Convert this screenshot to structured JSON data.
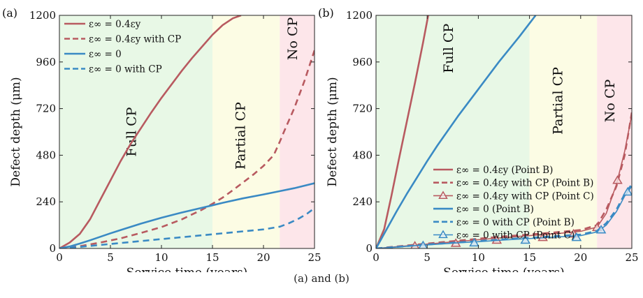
{
  "caption": "(a) and (b)",
  "chart_data": [
    {
      "panel_label": "(a)",
      "type": "line",
      "xlabel": "Service time (years)",
      "ylabel": "Defect depth (μm)",
      "xlim": [
        0,
        25
      ],
      "ylim": [
        0,
        1200
      ],
      "xticks": [
        0,
        5,
        10,
        15,
        20,
        25
      ],
      "yticks": [
        0,
        240,
        480,
        720,
        960,
        1200
      ],
      "regions": [
        {
          "label": "Full CP",
          "x0": 0,
          "x1": 15,
          "color": "#e8f8e6"
        },
        {
          "label": "Partial CP",
          "x0": 15,
          "x1": 21.6,
          "color": "#fcfce4"
        },
        {
          "label": "No CP",
          "x0": 21.6,
          "x1": 25,
          "color": "#fde6ea"
        }
      ],
      "legend_position": "top-left",
      "series": [
        {
          "name": "ε∞ = 0.4εy",
          "color": "#b85a60",
          "dash": "solid",
          "x": [
            0,
            1,
            2,
            3,
            4,
            5,
            6,
            7,
            8,
            9,
            10,
            11,
            12,
            13,
            14,
            15,
            16,
            17,
            17.8
          ],
          "y": [
            0,
            30,
            75,
            150,
            250,
            350,
            450,
            540,
            620,
            700,
            775,
            845,
            915,
            980,
            1040,
            1100,
            1150,
            1185,
            1200
          ]
        },
        {
          "name": "ε∞ = 0.4εy with CP",
          "color": "#b85a60",
          "dash": "dashed",
          "x": [
            0,
            2,
            4,
            6,
            8,
            10,
            12,
            14,
            15,
            16,
            17,
            18,
            19,
            20,
            21,
            21.6,
            22,
            23,
            24,
            25
          ],
          "y": [
            0,
            12,
            30,
            52,
            80,
            110,
            150,
            200,
            230,
            262,
            300,
            340,
            380,
            425,
            480,
            550,
            600,
            720,
            860,
            1020
          ]
        },
        {
          "name": "ε∞ = 0",
          "color": "#3a8ac4",
          "dash": "solid",
          "x": [
            0,
            1,
            2,
            3,
            4,
            5,
            6,
            8,
            10,
            12,
            14,
            15,
            16,
            18,
            20,
            21.6,
            23,
            25
          ],
          "y": [
            0,
            10,
            25,
            42,
            60,
            78,
            95,
            128,
            158,
            185,
            210,
            222,
            235,
            258,
            278,
            295,
            310,
            336
          ]
        },
        {
          "name": "ε∞ = 0 with CP",
          "color": "#3a8ac4",
          "dash": "dashed",
          "x": [
            0,
            2,
            4,
            6,
            8,
            10,
            12,
            14,
            16,
            18,
            20,
            21.6,
            22.5,
            23.5,
            24.3,
            25
          ],
          "y": [
            0,
            8,
            18,
            28,
            38,
            48,
            58,
            68,
            78,
            88,
            98,
            112,
            130,
            155,
            180,
            208
          ]
        }
      ]
    },
    {
      "panel_label": "(b)",
      "type": "line",
      "xlabel": "Service time (years)",
      "ylabel": "Defect depth (μm)",
      "xlim": [
        0,
        25
      ],
      "ylim": [
        0,
        1200
      ],
      "xticks": [
        0,
        5,
        10,
        15,
        20,
        25
      ],
      "yticks": [
        0,
        240,
        480,
        720,
        960,
        1200
      ],
      "regions": [
        {
          "label": "Full CP",
          "x0": 0,
          "x1": 15,
          "color": "#e8f8e6"
        },
        {
          "label": "Partial CP",
          "x0": 15,
          "x1": 21.6,
          "color": "#fcfce4"
        },
        {
          "label": "No CP",
          "x0": 21.6,
          "x1": 25,
          "color": "#fde6ea"
        }
      ],
      "legend_position": "center",
      "series": [
        {
          "name": "ε∞ = 0.4εy (Point B)",
          "color": "#b85a60",
          "dash": "solid",
          "marker": "none",
          "x": [
            0,
            0.8,
            1.5,
            2.2,
            3,
            3.8,
            4.6,
            5.1
          ],
          "y": [
            0,
            100,
            270,
            450,
            650,
            850,
            1060,
            1200
          ]
        },
        {
          "name": "ε∞ = 0.4εy with CP (Point B)",
          "color": "#b85a60",
          "dash": "dashed",
          "marker": "none",
          "x": [
            0,
            2,
            4,
            6,
            8,
            10,
            12,
            14,
            16,
            18,
            20,
            21.6,
            22.5,
            23.5,
            24.3,
            25
          ],
          "y": [
            0,
            10,
            20,
            30,
            40,
            50,
            60,
            68,
            76,
            85,
            95,
            120,
            200,
            320,
            480,
            700
          ]
        },
        {
          "name": "ε∞ = 0.4εy with CP (Point C)",
          "color": "#b85a60",
          "dash": "solid",
          "marker": "triangle",
          "x": [
            0,
            2,
            4,
            6,
            8,
            10,
            12,
            14,
            16,
            18,
            20,
            21.6,
            22.5,
            23.5,
            24.3,
            25
          ],
          "y": [
            0,
            9,
            18,
            27,
            36,
            45,
            54,
            62,
            70,
            78,
            88,
            110,
            180,
            330,
            500,
            690
          ],
          "marker_x": [
            3.8,
            7.8,
            11.8,
            16.3,
            19.3,
            21.6,
            23.6
          ],
          "marker_y": [
            12,
            26,
            42,
            56,
            74,
            107,
            350
          ]
        },
        {
          "name": "ε∞ = 0 (Point B)",
          "color": "#3a8ac4",
          "dash": "solid",
          "marker": "none",
          "x": [
            0,
            1,
            2,
            3,
            4,
            5,
            6,
            8,
            10,
            12,
            14,
            15.6
          ],
          "y": [
            0,
            95,
            190,
            280,
            365,
            450,
            530,
            680,
            820,
            960,
            1090,
            1200
          ]
        },
        {
          "name": "ε∞ = 0 with CP (Point B)",
          "color": "#3a8ac4",
          "dash": "dashed",
          "marker": "none",
          "x": [
            0,
            2,
            4,
            6,
            8,
            10,
            12,
            14,
            16,
            18,
            20,
            21.6,
            22.5,
            23.5,
            24.3,
            25
          ],
          "y": [
            0,
            8,
            16,
            24,
            31,
            38,
            45,
            52,
            58,
            65,
            72,
            90,
            130,
            200,
            280,
            330
          ]
        },
        {
          "name": "ε∞ = 0 with CP (Point C)",
          "color": "#3a8ac4",
          "dash": "solid",
          "marker": "triangle",
          "x": [
            0,
            2,
            4,
            6,
            8,
            10,
            12,
            14,
            16,
            18,
            20,
            21.6,
            22.5,
            23.5,
            24.3,
            25
          ],
          "y": [
            0,
            7,
            15,
            22,
            29,
            35,
            42,
            48,
            54,
            60,
            66,
            85,
            120,
            190,
            270,
            320
          ],
          "marker_x": [
            4.6,
            9.6,
            14.6,
            19.6,
            22.0,
            24.6
          ],
          "marker_y": [
            14,
            28,
            42,
            56,
            95,
            290
          ]
        }
      ]
    }
  ]
}
